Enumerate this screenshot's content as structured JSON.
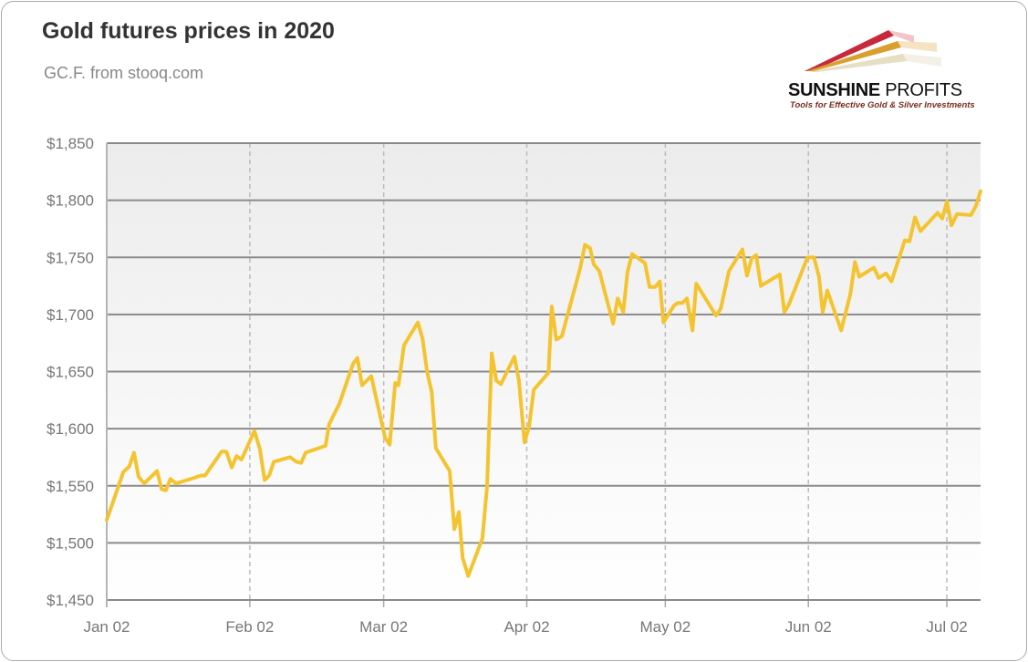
{
  "chart_data": {
    "type": "line",
    "title": "Gold futures prices in 2020",
    "subtitle": "GC.F. from stooq.com",
    "xlabel": "",
    "ylabel": "",
    "x_unit": "days since Jan 02, 2020",
    "ylim": [
      1450,
      1850
    ],
    "xlim": [
      0,
      189.3
    ],
    "grid": {
      "horizontal": true,
      "vertical": true
    },
    "y_ticks": [
      1450,
      1500,
      1550,
      1600,
      1650,
      1700,
      1750,
      1800,
      1850
    ],
    "y_tick_labels": [
      "$1,450",
      "$1,500",
      "$1,550",
      "$1,600",
      "$1,650",
      "$1,700",
      "$1,750",
      "$1,800",
      "$1,850"
    ],
    "x_ticks": [
      0,
      31,
      60,
      91,
      121,
      152,
      182
    ],
    "x_tick_labels": [
      "Jan 02",
      "Feb 02",
      "Mar 02",
      "Apr 02",
      "May 02",
      "Jun 02",
      "Jul 02"
    ],
    "series": [
      {
        "name": "GC.F",
        "color": "#f4c430",
        "x": [
          0,
          3.6,
          4.9,
          5.9,
          6.9,
          8.1,
          10.9,
          11.9,
          12.8,
          13.8,
          15.0,
          19.0,
          20.4,
          21.3,
          24.9,
          25.9,
          27.1,
          28.1,
          29.2,
          32.0,
          33.2,
          34.2,
          35.2,
          36.2,
          39.7,
          41.1,
          42.1,
          43.1,
          47.4,
          48.2,
          50.4,
          53.4,
          54.3,
          55.3,
          57.3,
          60.3,
          61.3,
          62.5,
          63.2,
          64.4,
          67.4,
          68.4,
          69.4,
          70.4,
          71.3,
          74.3,
          75.3,
          76.3,
          77.1,
          78.3,
          81.4,
          82.4,
          83.4,
          84.4,
          85.4,
          88.3,
          89.3,
          90.5,
          91.5,
          92.5,
          95.7,
          96.4,
          97.4,
          98.6,
          102.6,
          103.6,
          104.7,
          105.5,
          106.7,
          109.7,
          110.7,
          111.9,
          112.8,
          113.8,
          116.6,
          117.6,
          118.8,
          119.8,
          120.6,
          122.9,
          123.7,
          124.7,
          125.7,
          126.9,
          127.7,
          132.0,
          133.0,
          134.8,
          137.7,
          138.7,
          139.7,
          140.7,
          141.7,
          145.8,
          146.8,
          147.8,
          151.8,
          153.2,
          154.3,
          155.1,
          156.1,
          159.1,
          161.1,
          162.1,
          163.0,
          166.2,
          167.2,
          168.8,
          170.0,
          172.9,
          173.9,
          175.1,
          176.3,
          180.0,
          181.0,
          182.0,
          183.0,
          184.2,
          187.2,
          188.3,
          189.3
        ],
        "values": [
          1520,
          1562,
          1567,
          1579,
          1558,
          1552,
          1563,
          1547,
          1546,
          1556,
          1552,
          1557,
          1559,
          1559,
          1580,
          1580,
          1566,
          1576,
          1573,
          1598,
          1582,
          1555,
          1559,
          1571,
          1575,
          1571,
          1570,
          1579,
          1585,
          1604,
          1622,
          1657,
          1662,
          1638,
          1646,
          1592,
          1586,
          1640,
          1638,
          1673,
          1693,
          1679,
          1650,
          1632,
          1583,
          1563,
          1512,
          1527,
          1487,
          1471,
          1504,
          1550,
          1666,
          1642,
          1639,
          1663,
          1642,
          1588,
          1602,
          1634,
          1649,
          1707,
          1678,
          1681,
          1741,
          1761,
          1758,
          1744,
          1738,
          1692,
          1714,
          1702,
          1737,
          1753,
          1745,
          1724,
          1724,
          1729,
          1693,
          1708,
          1710,
          1710,
          1714,
          1686,
          1727,
          1699,
          1705,
          1738,
          1757,
          1734,
          1749,
          1752,
          1725,
          1735,
          1702,
          1709,
          1750,
          1750,
          1733,
          1702,
          1721,
          1686,
          1718,
          1746,
          1733,
          1741,
          1732,
          1736,
          1729,
          1765,
          1764,
          1785,
          1773,
          1789,
          1784,
          1799,
          1778,
          1788,
          1787,
          1795,
          1808
        ]
      }
    ]
  },
  "logo": {
    "name_bold": "SUNSHINE",
    "name_regular": "PROFITS",
    "tagline": "Tools for Effective Gold & Silver Investments"
  }
}
